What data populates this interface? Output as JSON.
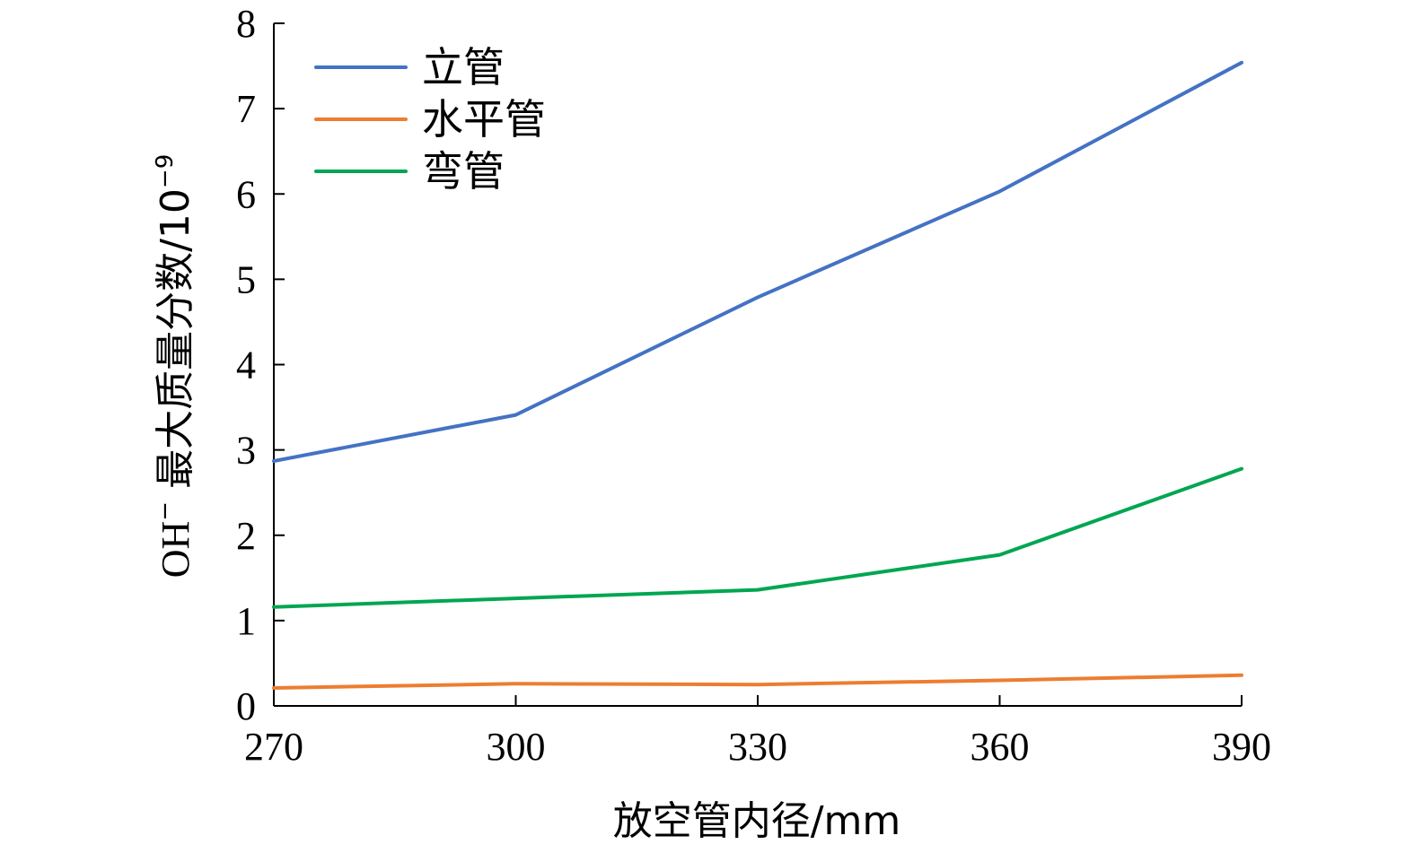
{
  "chart_data": {
    "type": "line",
    "title": "",
    "xlabel": "放空管内径/mm",
    "ylabel": {
      "prefix": "OH",
      "prefix_sup": "−",
      "main": " 最大质量分数/10",
      "exp_sup": "−9"
    },
    "x": [
      270,
      300,
      330,
      360,
      390
    ],
    "xlim": [
      270,
      390
    ],
    "ylim": [
      0,
      8
    ],
    "x_ticks": [
      "270",
      "300",
      "330",
      "360",
      "390"
    ],
    "y_ticks": [
      "0",
      "1",
      "2",
      "3",
      "4",
      "5",
      "6",
      "7",
      "8"
    ],
    "grid": false,
    "legend_position": "top-left",
    "series": [
      {
        "name": "立管",
        "color": "#4472C4",
        "values": [
          2.87,
          3.41,
          4.79,
          6.03,
          7.54
        ]
      },
      {
        "name": "水平管",
        "color": "#ED7D31",
        "values": [
          0.21,
          0.26,
          0.25,
          0.3,
          0.36
        ]
      },
      {
        "name": "弯管",
        "color": "#00A651",
        "values": [
          1.16,
          1.26,
          1.36,
          1.77,
          2.78
        ]
      }
    ]
  }
}
